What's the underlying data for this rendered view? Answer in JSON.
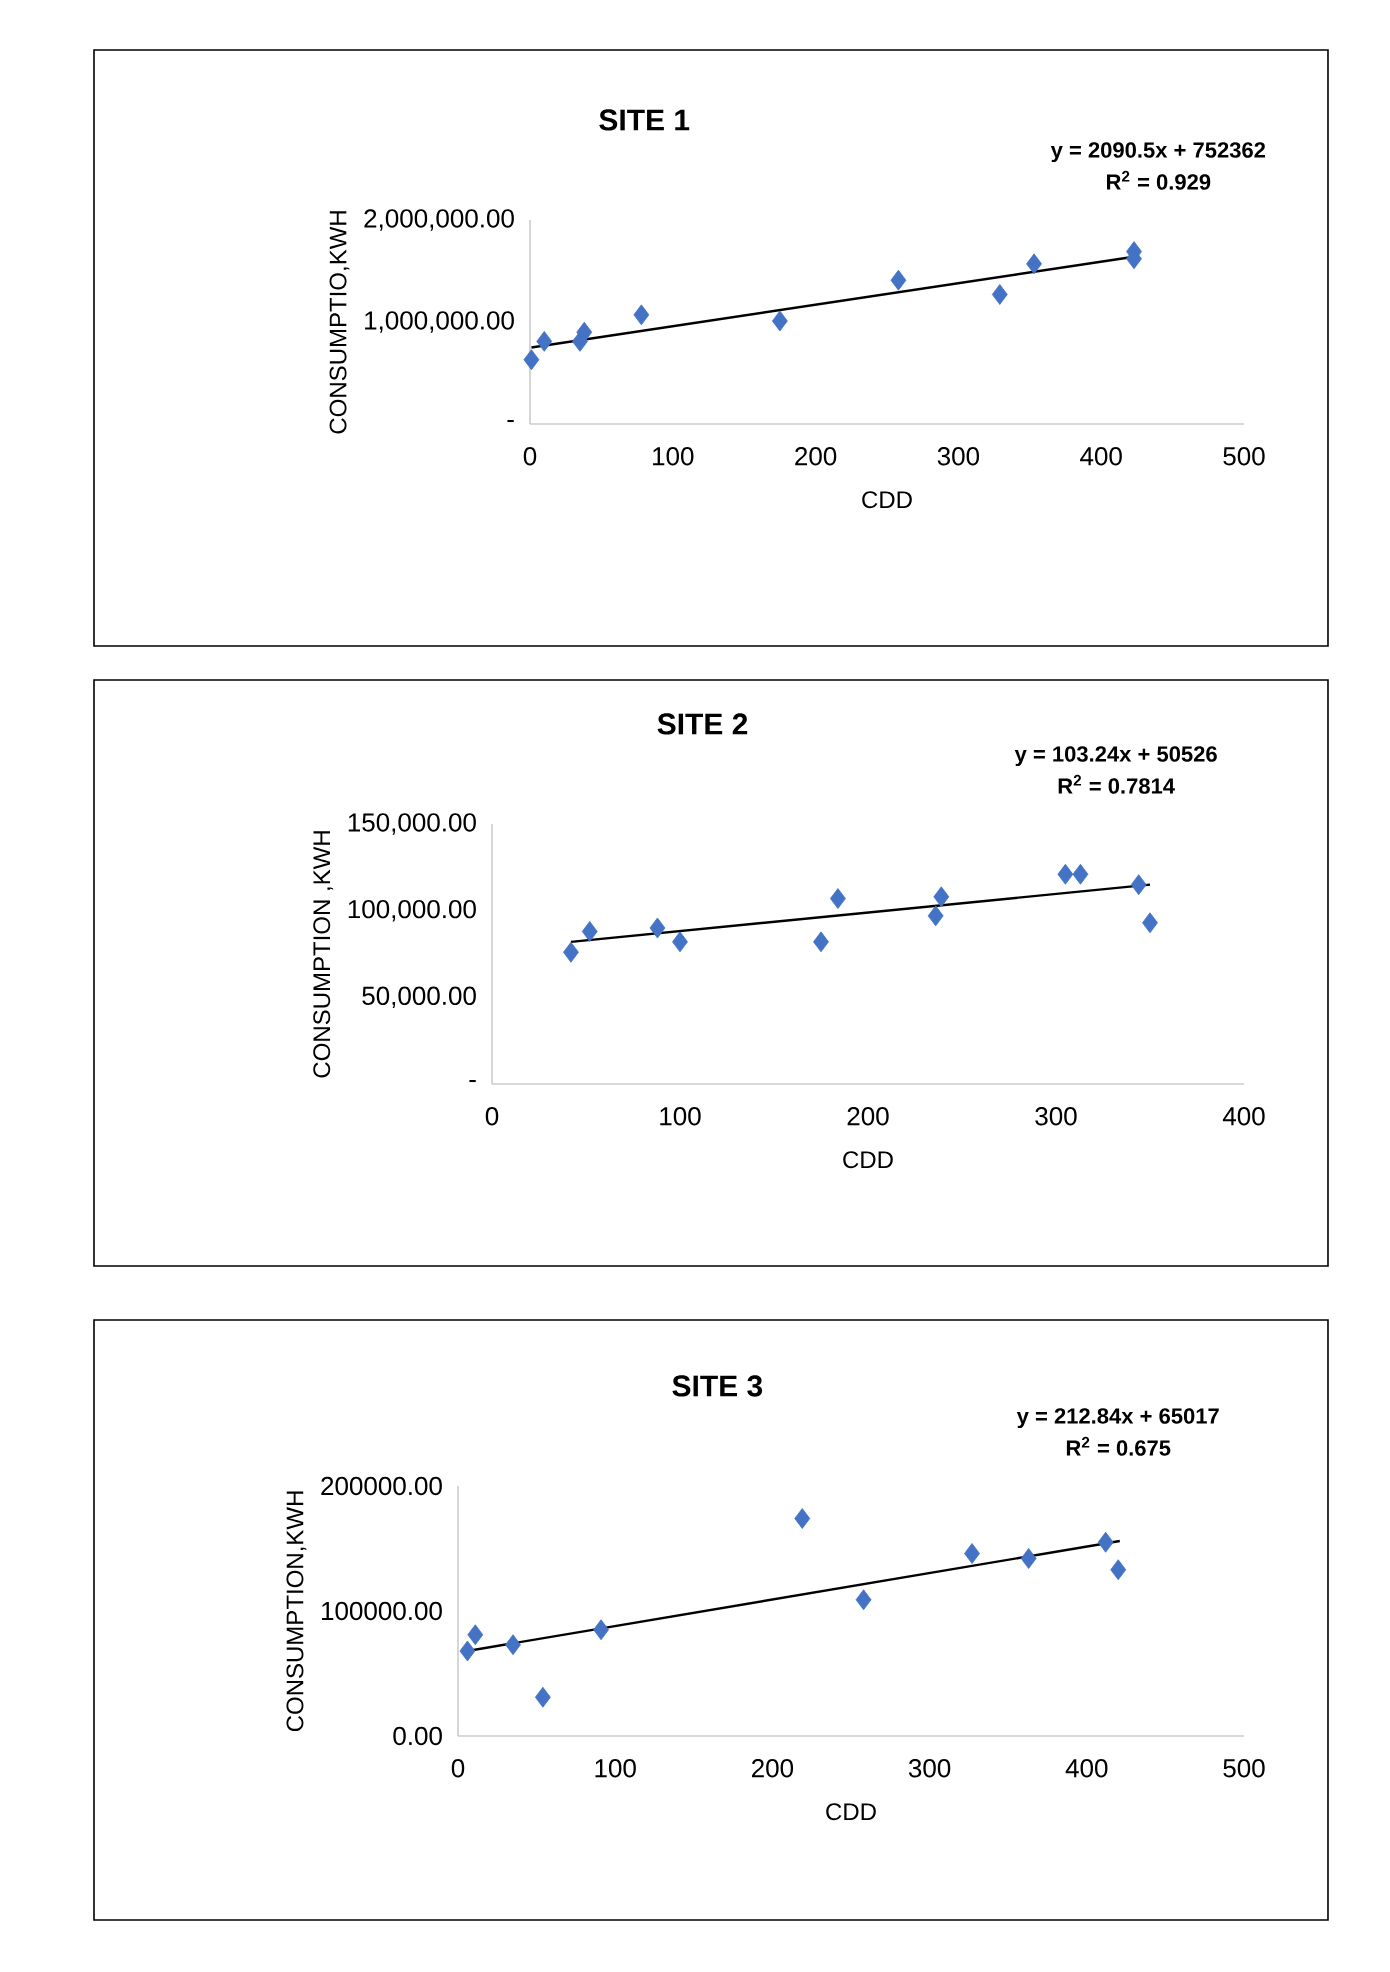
{
  "chart_data": [
    {
      "type": "scatter",
      "title": "SITE 1",
      "xlabel": "CDD",
      "ylabel": "CONSUMPTIO,KWH",
      "annotations": [
        "y = 2090.5x + 752362",
        "R$^{2}$ = 0.929"
      ],
      "xlim": [
        0,
        500
      ],
      "ylim": [
        0,
        2000000
      ],
      "xticks": [
        0,
        100,
        200,
        300,
        400,
        500
      ],
      "yticks": [
        {
          "value": 0,
          "label": "-"
        },
        {
          "value": 1000000,
          "label": "1,000,000.00"
        },
        {
          "value": 2000000,
          "label": "2,000,000.00"
        }
      ],
      "marker": "diamond",
      "series": [
        {
          "color": "#4472c4",
          "x": [
            1,
            10,
            35,
            38,
            78,
            175,
            258,
            329,
            353,
            423,
            423
          ],
          "values": [
            630000,
            810000,
            810000,
            900000,
            1070000,
            1010000,
            1410000,
            1270000,
            1570000,
            1690000,
            1620000
          ]
        },
        {
          "type": "line",
          "color": "#000000",
          "marker": "none",
          "line_style": "solid",
          "x": [
            1,
            423
          ],
          "values": [
            750000,
            1640000
          ]
        }
      ]
    },
    {
      "type": "scatter",
      "title": "SITE 2",
      "xlabel": "CDD",
      "ylabel": "CONSUMPTION ,KWH",
      "annotations": [
        "y = 103.24x + 50526",
        "R$^{2}$ = 0.7814"
      ],
      "xlim": [
        0,
        400
      ],
      "ylim": [
        0,
        150000
      ],
      "xticks": [
        0,
        100,
        200,
        300,
        400
      ],
      "yticks": [
        {
          "value": 0,
          "label": "-"
        },
        {
          "value": 50000,
          "label": "50,000.00"
        },
        {
          "value": 100000,
          "label": "100,000.00"
        },
        {
          "value": 150000,
          "label": "150,000.00"
        }
      ],
      "marker": "diamond",
      "series": [
        {
          "color": "#4472c4",
          "x": [
            42,
            52,
            88,
            100,
            175,
            184,
            236,
            239,
            305,
            313,
            344,
            350
          ],
          "values": [
            76000,
            88000,
            90000,
            82000,
            82000,
            107000,
            97000,
            108000,
            121000,
            121000,
            115000,
            93000
          ]
        },
        {
          "type": "line",
          "color": "#000000",
          "marker": "none",
          "line_style": "solid",
          "x": [
            42,
            350
          ],
          "values": [
            82000,
            115000
          ]
        }
      ]
    },
    {
      "type": "scatter",
      "title": "SITE 3",
      "xlabel": "CDD",
      "ylabel": "CONSUMPTION,KWH",
      "annotations": [
        "y = 212.84x + 65017",
        "R$^{2}$ = 0.675"
      ],
      "xlim": [
        0,
        500
      ],
      "ylim": [
        0,
        200000
      ],
      "xticks": [
        0,
        100,
        200,
        300,
        400,
        500
      ],
      "yticks": [
        {
          "value": 0,
          "label": "0.00"
        },
        {
          "value": 100000,
          "label": "100000.00"
        },
        {
          "value": 200000,
          "label": "200000.00"
        }
      ],
      "marker": "diamond",
      "series": [
        {
          "color": "#4472c4",
          "x": [
            6,
            11,
            35,
            54,
            91,
            219,
            258,
            327,
            363,
            412,
            420
          ],
          "values": [
            68000,
            81000,
            73000,
            31000,
            85000,
            174000,
            109000,
            146000,
            142000,
            155000,
            133000
          ]
        },
        {
          "type": "line",
          "color": "#000000",
          "marker": "none",
          "line_style": "solid",
          "x": [
            6,
            421
          ],
          "values": [
            68000,
            156000
          ]
        }
      ]
    }
  ]
}
